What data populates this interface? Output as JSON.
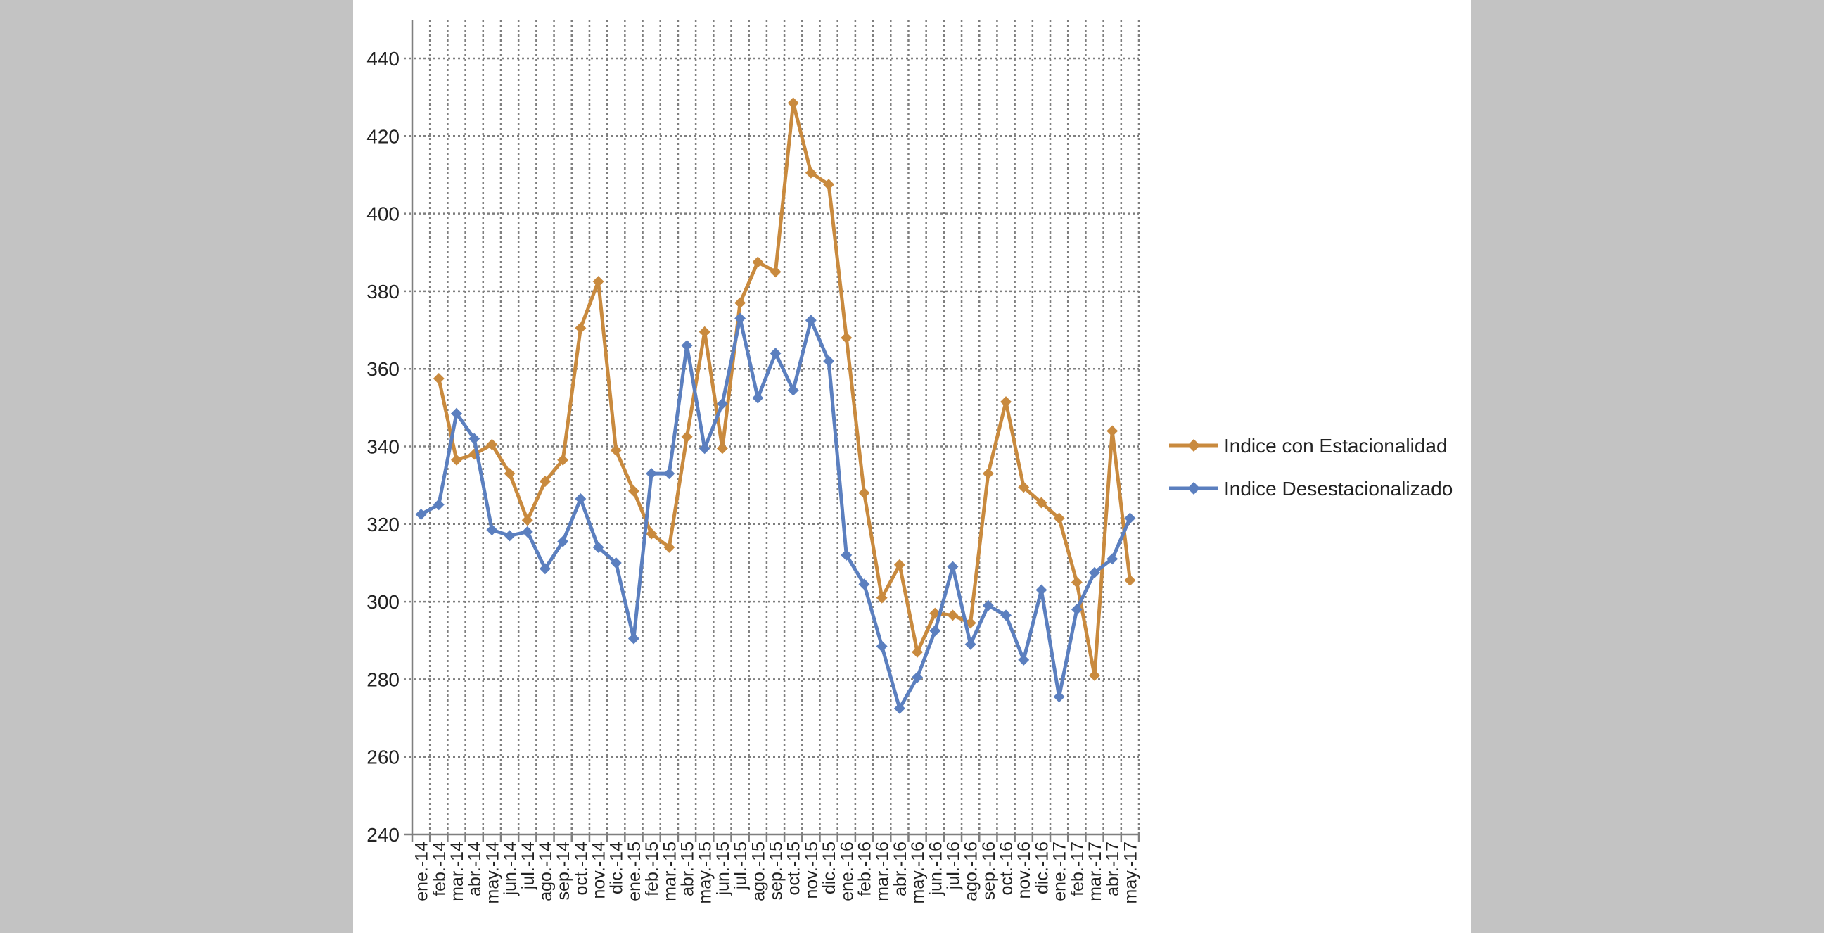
{
  "colors": {
    "page_background": "#c3c3c3",
    "chart_background": "#ffffff",
    "grid": "#7f7f7f",
    "axis": "#7f7f7f",
    "text": "#222222"
  },
  "chart_data": {
    "type": "line",
    "title": "",
    "xlabel": "",
    "ylabel": "",
    "ylim": [
      240,
      440
    ],
    "yticks": [
      240,
      260,
      280,
      300,
      320,
      340,
      360,
      380,
      400,
      420,
      440
    ],
    "grid": "dotted, both axes",
    "legend_position": "right",
    "categories": [
      "ene.-14",
      "feb.-14",
      "mar.-14",
      "abr.-14",
      "may.-14",
      "jun.-14",
      "jul.-14",
      "ago.-14",
      "sep.-14",
      "oct.-14",
      "nov.-14",
      "dic.-14",
      "ene.-15",
      "feb.-15",
      "mar.-15",
      "abr.-15",
      "may.-15",
      "jun.-15",
      "jul.-15",
      "ago.-15",
      "sep.-15",
      "oct.-15",
      "nov.-15",
      "dic.-15",
      "ene.-16",
      "feb.-16",
      "mar.-16",
      "abr.-16",
      "may.-16",
      "jun.-16",
      "jul.-16",
      "ago.-16",
      "sep.-16",
      "oct.-16",
      "nov.-16",
      "dic.-16",
      "ene.-17",
      "feb.-17",
      "mar.-17",
      "abr.-17",
      "may.-17"
    ],
    "series": [
      {
        "name": "Indice con Estacionalidad",
        "color": "#c98a3e",
        "values": [
          null,
          357.5,
          336.5,
          338,
          340.5,
          333,
          321,
          331,
          336.5,
          370.5,
          382.5,
          339,
          328.5,
          317.5,
          314,
          342.5,
          369.5,
          339.5,
          377,
          387.5,
          385,
          428.5,
          410.5,
          407.5,
          368,
          328,
          301,
          309.5,
          287,
          297,
          296.5,
          294.5,
          333,
          351.5,
          329.5,
          325.5,
          321.5,
          305,
          281,
          344,
          305.5
        ]
      },
      {
        "name": "Indice Desestacionalizado",
        "color": "#5b7fbf",
        "values": [
          322.5,
          325,
          348.5,
          342,
          318.5,
          317,
          318,
          308.5,
          315.5,
          326.5,
          314,
          310,
          290.5,
          333,
          333,
          366,
          339.5,
          351,
          373,
          352.5,
          364,
          354.5,
          372.5,
          362,
          312,
          304.5,
          288.5,
          272.5,
          280.5,
          292.5,
          309,
          289,
          299,
          296.5,
          285,
          303,
          275.5,
          298,
          307.5,
          311,
          321.5
        ]
      }
    ]
  }
}
